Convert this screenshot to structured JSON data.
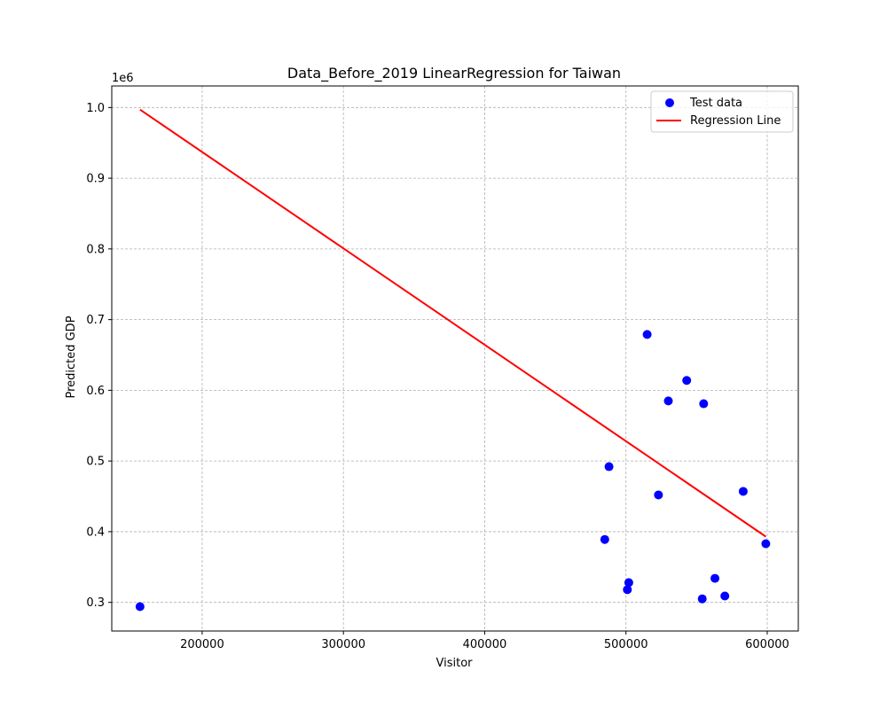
{
  "chart_data": {
    "type": "scatter",
    "title": "Data_Before_2019 LinearRegression for Taiwan",
    "xlabel": "Visitor",
    "ylabel": "Predicted GDP",
    "y_offset_label": "1e6",
    "xlim": [
      136000,
      622000
    ],
    "ylim": [
      0.2595,
      1.0305
    ],
    "x_ticks": [
      200000,
      300000,
      400000,
      500000,
      600000
    ],
    "x_tick_labels": [
      "200000",
      "300000",
      "400000",
      "500000",
      "600000"
    ],
    "y_ticks": [
      0.3,
      0.4,
      0.5,
      0.6,
      0.7,
      0.8,
      0.9,
      1.0
    ],
    "y_tick_labels": [
      "0.3",
      "0.4",
      "0.5",
      "0.6",
      "0.7",
      "0.8",
      "0.9",
      "1.0"
    ],
    "grid": true,
    "legend_position": "top-right",
    "series": [
      {
        "name": "Test data",
        "kind": "scatter",
        "color": "#0000ff",
        "points": [
          [
            156000,
            0.294
          ],
          [
            485000,
            0.389
          ],
          [
            488000,
            0.492
          ],
          [
            501000,
            0.318
          ],
          [
            502000,
            0.328
          ],
          [
            515000,
            0.679
          ],
          [
            523000,
            0.452
          ],
          [
            530000,
            0.585
          ],
          [
            543000,
            0.614
          ],
          [
            554000,
            0.305
          ],
          [
            555000,
            0.581
          ],
          [
            563000,
            0.334
          ],
          [
            570000,
            0.309
          ],
          [
            583000,
            0.457
          ],
          [
            599000,
            0.383
          ]
        ]
      },
      {
        "name": "Regression Line",
        "kind": "line",
        "color": "#ff0000",
        "points": [
          [
            156000,
            0.997
          ],
          [
            599000,
            0.393
          ]
        ]
      }
    ]
  }
}
